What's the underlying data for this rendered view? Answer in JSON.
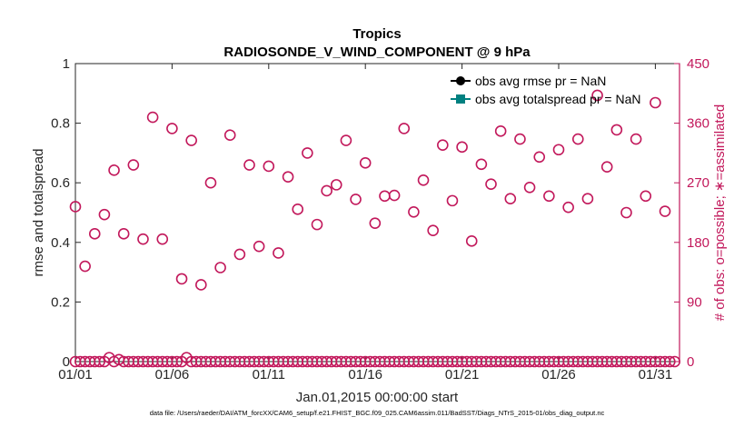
{
  "chart_data": {
    "type": "scatter",
    "title": "Tropics",
    "subtitle": "RADIOSONDE_V_WIND_COMPONENT @ 9 hPa",
    "xlabel": "Jan.01,2015 00:00:00 start",
    "ylabel_left": "rmse and totalspread",
    "ylabel_right": "# of obs: o=possible; ∗=assimilated",
    "xlim": [
      1,
      32.25
    ],
    "ylim_left": [
      0,
      1
    ],
    "ylim_right": [
      0,
      450
    ],
    "x_ticks": [
      1,
      6,
      11,
      16,
      21,
      26,
      31
    ],
    "x_tick_labels": [
      "01/01",
      "01/06",
      "01/11",
      "01/16",
      "01/21",
      "01/26",
      "01/31"
    ],
    "y_left_ticks": [
      0,
      0.2,
      0.4,
      0.6,
      0.8,
      1
    ],
    "y_left_tick_labels": [
      "0",
      "0.2",
      "0.4",
      "0.6",
      "0.8",
      "1"
    ],
    "y_right_ticks": [
      0,
      90,
      180,
      270,
      360,
      450
    ],
    "y_right_tick_labels": [
      "0",
      "90",
      "180",
      "270",
      "360",
      "450"
    ],
    "legend": [
      {
        "label": "obs avg rmse pr = NaN",
        "color": "#000000",
        "marker": "circle"
      },
      {
        "label": "obs avg totalspread pr = NaN",
        "color": "#008080",
        "marker": "square"
      }
    ],
    "series": [
      {
        "name": "possible",
        "axis": "right",
        "marker": "open-circle",
        "color": "#c2185b",
        "x": [
          1.0,
          1.5,
          2.0,
          2.5,
          3.0,
          3.5,
          4.0,
          4.5,
          5.0,
          5.5,
          6.0,
          6.5,
          7.0,
          7.5,
          8.0,
          8.5,
          9.0,
          9.5,
          10.0,
          10.5,
          11.0,
          11.5,
          12.0,
          12.5,
          13.0,
          13.5,
          14.0,
          14.5,
          15.0,
          15.5,
          16.0,
          16.5,
          17.0,
          17.5,
          18.0,
          18.5,
          19.0,
          19.5,
          20.0,
          20.5,
          21.0,
          21.5,
          22.0,
          22.5,
          23.0,
          23.5,
          24.0,
          24.5,
          25.0,
          25.5,
          26.0,
          26.5,
          27.0,
          27.5,
          28.0,
          28.5,
          29.0,
          29.5,
          30.0,
          30.5,
          31.0,
          31.5
        ],
        "values": [
          234,
          144,
          193,
          222,
          289,
          193,
          297,
          185,
          369,
          185,
          352,
          125,
          334,
          116,
          270,
          142,
          342,
          162,
          297,
          174,
          295,
          164,
          279,
          230,
          315,
          207,
          258,
          267,
          334,
          245,
          300,
          209,
          250,
          251,
          352,
          226,
          274,
          198,
          327,
          243,
          324,
          182,
          298,
          268,
          348,
          246,
          336,
          263,
          309,
          250,
          320,
          233,
          336,
          246,
          402,
          294,
          350,
          225,
          336,
          250,
          391,
          227
        ]
      },
      {
        "name": "assimilated",
        "axis": "right",
        "marker": "open-circle",
        "color": "#c2185b",
        "x": [
          1.0,
          1.25,
          1.5,
          1.75,
          2.0,
          2.25,
          2.5,
          2.75,
          3.0,
          3.25,
          3.5,
          3.75,
          4.0,
          4.25,
          4.5,
          4.75,
          5.0,
          5.25,
          5.5,
          5.75,
          6.0,
          6.25,
          6.5,
          6.75,
          7.0,
          7.25,
          7.5,
          7.75,
          8.0,
          8.25,
          8.5,
          8.75,
          9.0,
          9.25,
          9.5,
          9.75,
          10.0,
          10.25,
          10.5,
          10.75,
          11.0,
          11.25,
          11.5,
          11.75,
          12.0,
          12.25,
          12.5,
          12.75,
          13.0,
          13.25,
          13.5,
          13.75,
          14.0,
          14.25,
          14.5,
          14.75,
          15.0,
          15.25,
          15.5,
          15.75,
          16.0,
          16.25,
          16.5,
          16.75,
          17.0,
          17.25,
          17.5,
          17.75,
          18.0,
          18.25,
          18.5,
          18.75,
          19.0,
          19.25,
          19.5,
          19.75,
          20.0,
          20.25,
          20.5,
          20.75,
          21.0,
          21.25,
          21.5,
          21.75,
          22.0,
          22.25,
          22.5,
          22.75,
          23.0,
          23.25,
          23.5,
          23.75,
          24.0,
          24.25,
          24.5,
          24.75,
          25.0,
          25.25,
          25.5,
          25.75,
          26.0,
          26.25,
          26.5,
          26.75,
          27.0,
          27.25,
          27.5,
          27.75,
          28.0,
          28.25,
          28.5,
          28.75,
          29.0,
          29.25,
          29.5,
          29.75,
          30.0,
          30.25,
          30.5,
          30.75,
          31.0,
          31.25,
          31.5,
          31.75,
          32.0
        ],
        "values": [
          0,
          0,
          0,
          0,
          0,
          0,
          0,
          6,
          0,
          3,
          0,
          0,
          0,
          0,
          0,
          0,
          0,
          0,
          0,
          0,
          0,
          0,
          0,
          6,
          0,
          0,
          0,
          0,
          0,
          0,
          0,
          0,
          0,
          0,
          0,
          0,
          0,
          0,
          0,
          0,
          0,
          0,
          0,
          0,
          0,
          0,
          0,
          0,
          0,
          0,
          0,
          0,
          0,
          0,
          0,
          0,
          0,
          0,
          0,
          0,
          0,
          0,
          0,
          0,
          0,
          0,
          0,
          0,
          0,
          0,
          0,
          0,
          0,
          0,
          0,
          0,
          0,
          0,
          0,
          0,
          0,
          0,
          0,
          0,
          0,
          0,
          0,
          0,
          0,
          0,
          0,
          0,
          0,
          0,
          0,
          0,
          0,
          0,
          0,
          0,
          0,
          0,
          0,
          0,
          0,
          0,
          0,
          0,
          0,
          0,
          0,
          0,
          0,
          0,
          0,
          0,
          0,
          0,
          0,
          0,
          0,
          0,
          0,
          0,
          0
        ]
      }
    ],
    "grid": false
  },
  "footer": "data file: /Users/raeder/DAI/ATM_forcXX/CAM6_setup/f.e21.FHIST_BGC.f09_025.CAM6assim.011/BadSST/Diags_NTrS_2015-01/obs_diag_output.nc"
}
